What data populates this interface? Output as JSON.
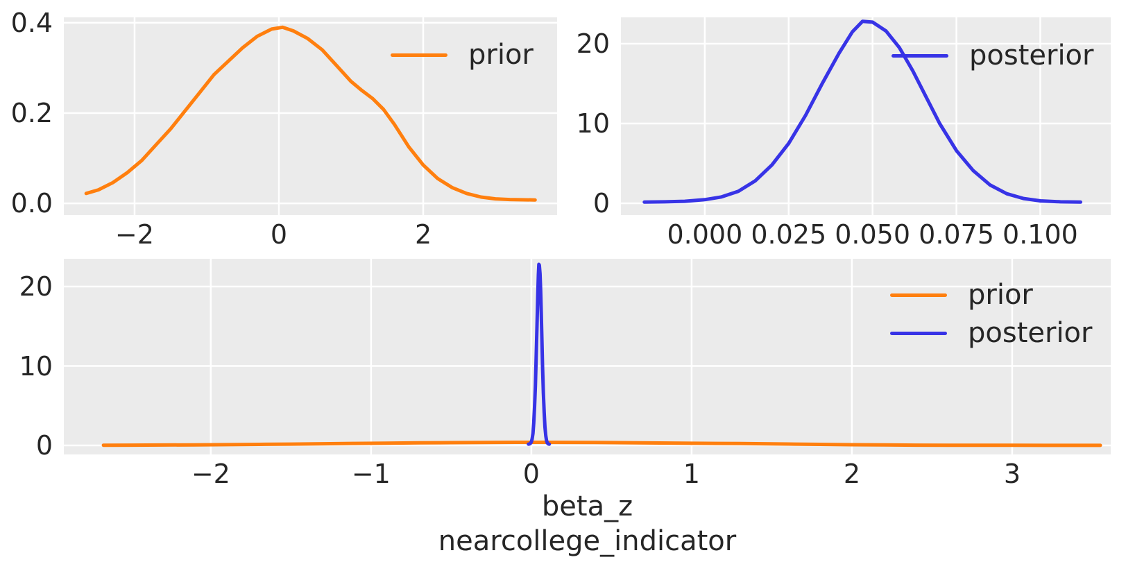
{
  "figure": {
    "background": "#ffffff",
    "axes_background": "#ebebeb",
    "grid_color": "#ffffff",
    "text_color": "#262626",
    "colors": {
      "prior": "#ff7f0e",
      "posterior": "#3733e6"
    }
  },
  "chart_data": [
    {
      "id": "prior-density",
      "type": "line",
      "title": "",
      "xlabel": "",
      "ylabel": "",
      "grid": true,
      "legend_position": "upper right",
      "xlim": [
        -2.98,
        3.855
      ],
      "ylim": [
        -0.026,
        0.412
      ],
      "xticks": [
        {
          "value": -2,
          "label": "−2"
        },
        {
          "value": 0,
          "label": "0"
        },
        {
          "value": 2,
          "label": "2"
        }
      ],
      "yticks": [
        {
          "value": 0.0,
          "label": "0.0"
        },
        {
          "value": 0.2,
          "label": "0.2"
        },
        {
          "value": 0.4,
          "label": "0.4"
        }
      ],
      "legend": [
        {
          "label": "prior",
          "color": "#ff7f0e"
        }
      ],
      "series": [
        {
          "name": "prior",
          "color": "#ff7f0e",
          "x": [
            -2.67,
            -2.5,
            -2.3,
            -2.1,
            -1.9,
            -1.7,
            -1.5,
            -1.3,
            -1.1,
            -0.9,
            -0.7,
            -0.5,
            -0.3,
            -0.1,
            0.05,
            0.2,
            0.4,
            0.6,
            0.8,
            1.0,
            1.15,
            1.3,
            1.45,
            1.6,
            1.8,
            2.0,
            2.2,
            2.4,
            2.6,
            2.8,
            3.0,
            3.2,
            3.55
          ],
          "y": [
            0.022,
            0.03,
            0.046,
            0.068,
            0.095,
            0.13,
            0.165,
            0.205,
            0.245,
            0.285,
            0.315,
            0.345,
            0.37,
            0.386,
            0.39,
            0.382,
            0.365,
            0.34,
            0.305,
            0.27,
            0.25,
            0.232,
            0.208,
            0.175,
            0.125,
            0.085,
            0.055,
            0.035,
            0.022,
            0.014,
            0.01,
            0.0085,
            0.0075
          ]
        }
      ]
    },
    {
      "id": "posterior-density",
      "type": "line",
      "title": "",
      "xlabel": "",
      "ylabel": "",
      "grid": true,
      "legend_position": "upper right",
      "xlim": [
        -0.025,
        0.121
      ],
      "ylim": [
        -1.48,
        23.3
      ],
      "xticks": [
        {
          "value": 0.0,
          "label": "0.000"
        },
        {
          "value": 0.025,
          "label": "0.025"
        },
        {
          "value": 0.05,
          "label": "0.050"
        },
        {
          "value": 0.075,
          "label": "0.075"
        },
        {
          "value": 0.1,
          "label": "0.100"
        }
      ],
      "yticks": [
        {
          "value": 0,
          "label": "0"
        },
        {
          "value": 10,
          "label": "10"
        },
        {
          "value": 20,
          "label": "20"
        }
      ],
      "legend": [
        {
          "label": "posterior",
          "color": "#3733e6"
        }
      ],
      "series": [
        {
          "name": "posterior",
          "color": "#3733e6",
          "x": [
            -0.018,
            -0.012,
            -0.006,
            0.0,
            0.005,
            0.01,
            0.015,
            0.02,
            0.025,
            0.03,
            0.035,
            0.04,
            0.044,
            0.047,
            0.05,
            0.054,
            0.058,
            0.062,
            0.066,
            0.07,
            0.075,
            0.08,
            0.085,
            0.09,
            0.095,
            0.1,
            0.106,
            0.112
          ],
          "y": [
            0.15,
            0.18,
            0.25,
            0.45,
            0.8,
            1.5,
            2.8,
            4.8,
            7.5,
            11.0,
            15.0,
            18.8,
            21.5,
            22.8,
            22.7,
            21.6,
            19.5,
            16.6,
            13.3,
            10.0,
            6.6,
            4.1,
            2.3,
            1.2,
            0.6,
            0.3,
            0.18,
            0.15
          ]
        }
      ]
    },
    {
      "id": "prior-posterior-combined",
      "type": "line",
      "title": "",
      "xlabel": "beta_z\nnearcollege_indicator",
      "xlabel_lines": [
        "beta_z",
        "nearcollege_indicator"
      ],
      "ylabel": "",
      "grid": true,
      "legend_position": "upper right",
      "xlim": [
        -2.917,
        3.615
      ],
      "ylim": [
        -1.14,
        23.5
      ],
      "xticks": [
        {
          "value": -2,
          "label": "−2"
        },
        {
          "value": -1,
          "label": "−1"
        },
        {
          "value": 0,
          "label": "0"
        },
        {
          "value": 1,
          "label": "1"
        },
        {
          "value": 2,
          "label": "2"
        },
        {
          "value": 3,
          "label": "3"
        }
      ],
      "yticks": [
        {
          "value": 0,
          "label": "0"
        },
        {
          "value": 10,
          "label": "10"
        },
        {
          "value": 20,
          "label": "20"
        }
      ],
      "legend": [
        {
          "label": "prior",
          "color": "#ff7f0e"
        },
        {
          "label": "posterior",
          "color": "#3733e6"
        }
      ],
      "series": [
        {
          "name": "prior",
          "color": "#ff7f0e",
          "x": [
            -2.67,
            -2.5,
            -2.3,
            -2.1,
            -1.9,
            -1.7,
            -1.5,
            -1.3,
            -1.1,
            -0.9,
            -0.7,
            -0.5,
            -0.3,
            -0.1,
            0.05,
            0.2,
            0.4,
            0.6,
            0.8,
            1.0,
            1.15,
            1.3,
            1.45,
            1.6,
            1.8,
            2.0,
            2.2,
            2.4,
            2.6,
            2.8,
            3.0,
            3.2,
            3.55
          ],
          "y": [
            0.022,
            0.03,
            0.046,
            0.068,
            0.095,
            0.13,
            0.165,
            0.205,
            0.245,
            0.285,
            0.315,
            0.345,
            0.37,
            0.386,
            0.39,
            0.382,
            0.365,
            0.34,
            0.305,
            0.27,
            0.25,
            0.232,
            0.208,
            0.175,
            0.125,
            0.085,
            0.055,
            0.035,
            0.022,
            0.014,
            0.01,
            0.0085,
            0.0075
          ]
        },
        {
          "name": "posterior",
          "color": "#3733e6",
          "x": [
            -0.018,
            -0.012,
            -0.006,
            0.0,
            0.005,
            0.01,
            0.015,
            0.02,
            0.025,
            0.03,
            0.035,
            0.04,
            0.044,
            0.047,
            0.05,
            0.054,
            0.058,
            0.062,
            0.066,
            0.07,
            0.075,
            0.08,
            0.085,
            0.09,
            0.095,
            0.1,
            0.106,
            0.112
          ],
          "y": [
            0.15,
            0.18,
            0.25,
            0.45,
            0.8,
            1.5,
            2.8,
            4.8,
            7.5,
            11.0,
            15.0,
            18.8,
            21.5,
            22.8,
            22.7,
            21.6,
            19.5,
            16.6,
            13.3,
            10.0,
            6.6,
            4.1,
            2.3,
            1.2,
            0.6,
            0.3,
            0.18,
            0.15
          ]
        }
      ]
    }
  ]
}
